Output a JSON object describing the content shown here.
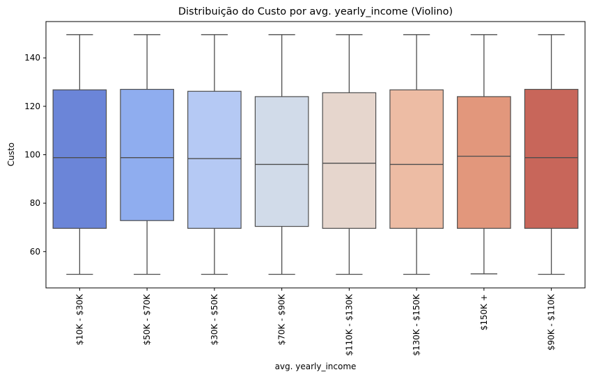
{
  "chart_data": {
    "type": "box",
    "title": "Distribuição do Custo por avg. yearly_income (Violino)",
    "xlabel": "avg. yearly_income",
    "ylabel": "Custo",
    "ylim": [
      45,
      155
    ],
    "yticks": [
      60,
      80,
      100,
      120,
      140
    ],
    "grid": false,
    "categories": [
      "$10K - $30K",
      "$50K - $70K",
      "$30K - $50K",
      "$70K - $90K",
      "$110K - $130K",
      "$130K - $150K",
      "$150K +",
      "$90K - $110K"
    ],
    "boxes": [
      {
        "min": 50.6,
        "q1": 69.6,
        "median": 98.8,
        "q3": 126.8,
        "max": 149.6,
        "color": "#6b85d8"
      },
      {
        "min": 50.6,
        "q1": 72.8,
        "median": 98.8,
        "q3": 127.0,
        "max": 149.6,
        "color": "#8fadef"
      },
      {
        "min": 50.6,
        "q1": 69.6,
        "median": 98.4,
        "q3": 126.2,
        "max": 149.6,
        "color": "#b5c9f4"
      },
      {
        "min": 50.6,
        "q1": 70.4,
        "median": 96.0,
        "q3": 124.0,
        "max": 149.6,
        "color": "#d1dbe9"
      },
      {
        "min": 50.6,
        "q1": 69.6,
        "median": 96.5,
        "q3": 125.6,
        "max": 149.6,
        "color": "#e6d6cd"
      },
      {
        "min": 50.6,
        "q1": 69.6,
        "median": 96.0,
        "q3": 126.8,
        "max": 149.6,
        "color": "#edbca4"
      },
      {
        "min": 50.8,
        "q1": 69.6,
        "median": 99.4,
        "q3": 124.0,
        "max": 149.6,
        "color": "#e2977c"
      },
      {
        "min": 50.6,
        "q1": 69.6,
        "median": 98.8,
        "q3": 127.0,
        "max": 149.6,
        "color": "#c8665a"
      }
    ]
  }
}
